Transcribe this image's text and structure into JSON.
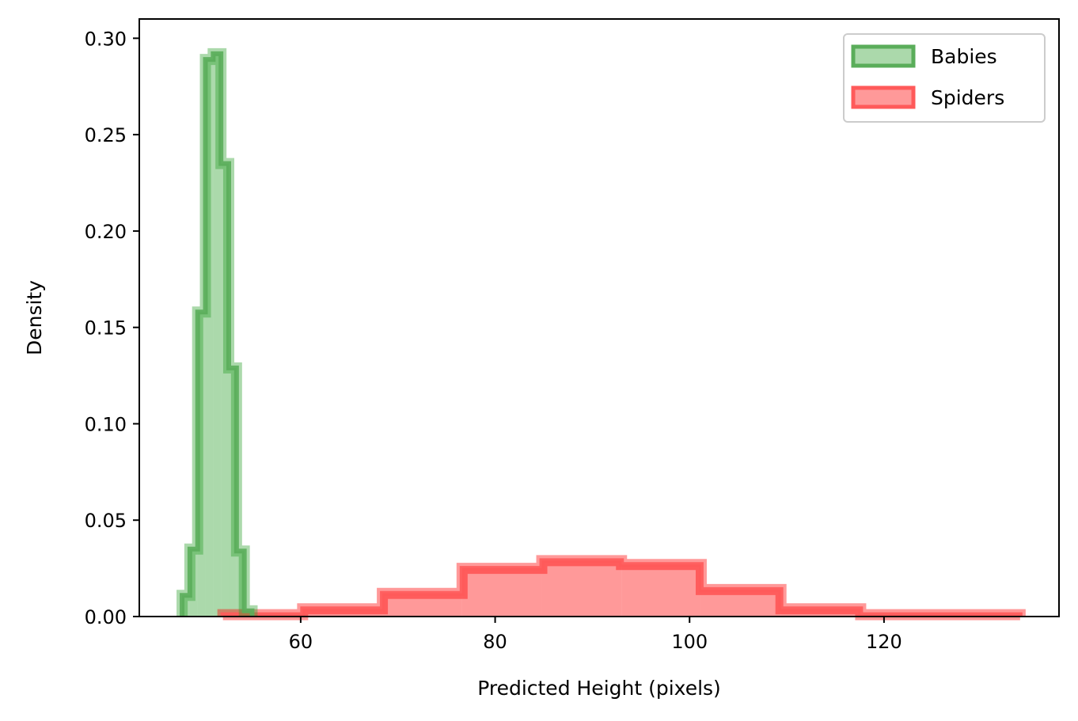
{
  "chart_data": {
    "type": "histogram",
    "title": "",
    "xlabel": "Predicted Height (pixels)",
    "ylabel": "Density",
    "xlim": [
      43.4,
      138.0
    ],
    "ylim": [
      0.0,
      0.31
    ],
    "xticks": [
      60,
      80,
      100,
      120
    ],
    "yticks": [
      0.0,
      0.05,
      0.1,
      0.15,
      0.2,
      0.25,
      0.3
    ],
    "ytick_labels": [
      "0.00",
      "0.05",
      "0.10",
      "0.15",
      "0.20",
      "0.25",
      "0.30"
    ],
    "grid": false,
    "legend_position": "top-right",
    "series": [
      {
        "name": "Babies",
        "color": "#2ca02c",
        "edge_color": "#5aad5a",
        "bin_edges": [
          47.8,
          48.6,
          49.4,
          50.2,
          51.0,
          51.8,
          52.6,
          53.4,
          54.2,
          55.0
        ],
        "density": [
          0.011,
          0.035,
          0.158,
          0.289,
          0.292,
          0.235,
          0.129,
          0.034,
          0.003
        ]
      },
      {
        "name": "Spiders",
        "color": "#ff0000",
        "edge_color": "#ff5a5a",
        "bin_edges": [
          52.0,
          60.2,
          68.4,
          76.6,
          84.8,
          93.0,
          101.2,
          109.4,
          117.6,
          125.8,
          134.0
        ],
        "density": [
          0.001,
          0.004,
          0.012,
          0.025,
          0.029,
          0.027,
          0.014,
          0.004,
          0.001,
          0.001
        ]
      }
    ]
  }
}
